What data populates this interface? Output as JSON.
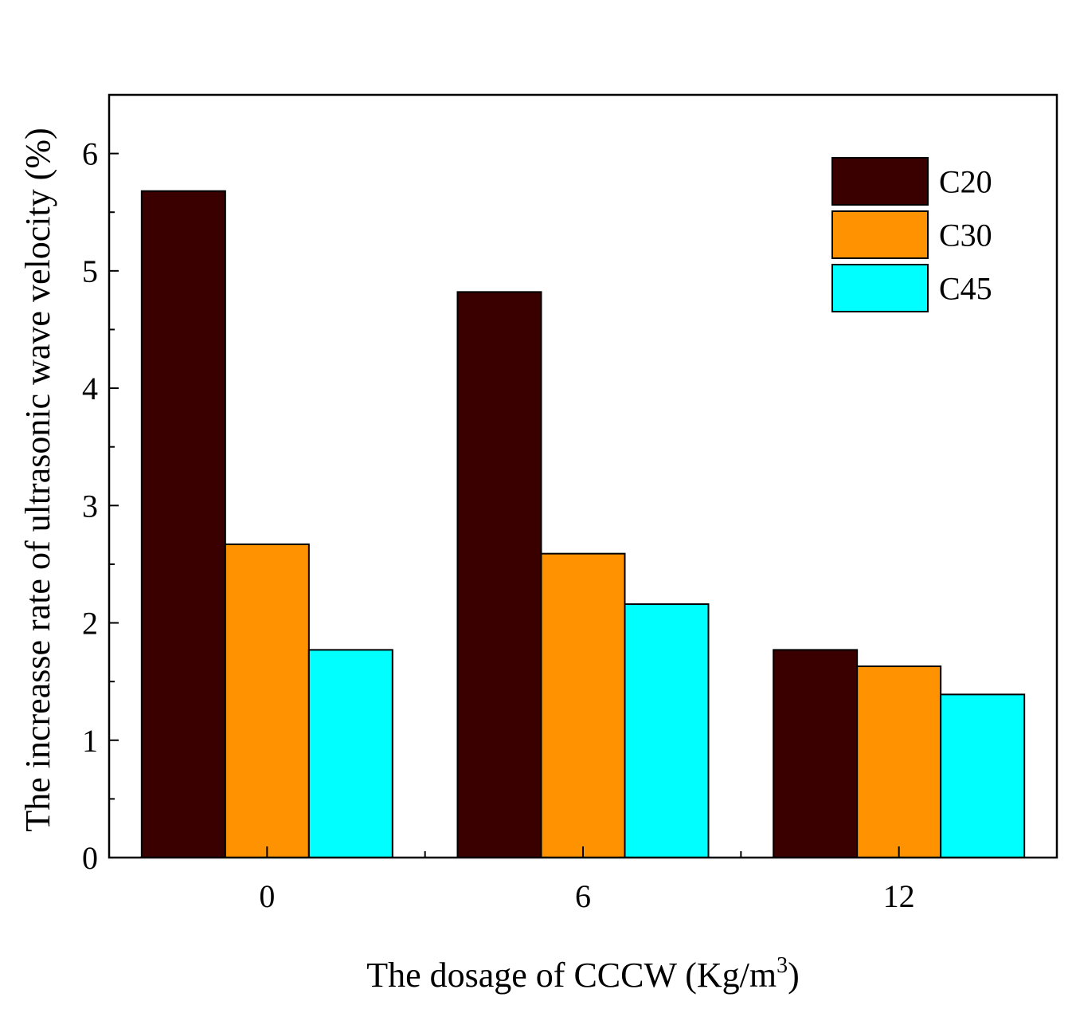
{
  "chart_data": {
    "type": "bar",
    "categories": [
      "0",
      "6",
      "12"
    ],
    "series": [
      {
        "name": "C20",
        "color": "#3a0000",
        "values": [
          5.68,
          4.82,
          1.77
        ]
      },
      {
        "name": "C30",
        "color": "#ff9200",
        "values": [
          2.67,
          2.59,
          1.63
        ]
      },
      {
        "name": "C45",
        "color": "#00ffff",
        "values": [
          1.77,
          2.16,
          1.39
        ]
      }
    ],
    "xlabel": "The dosage of CCCW (Kg/m",
    "xlabel_sup": "3",
    "xlabel_end": ")",
    "ylabel": "The increasse rate of ultrasonic wave velocity (%)",
    "ylim": [
      0,
      6.5
    ],
    "yticks": [
      "0",
      "1",
      "2",
      "3",
      "4",
      "5",
      "6"
    ],
    "legend_position": "top-right"
  }
}
